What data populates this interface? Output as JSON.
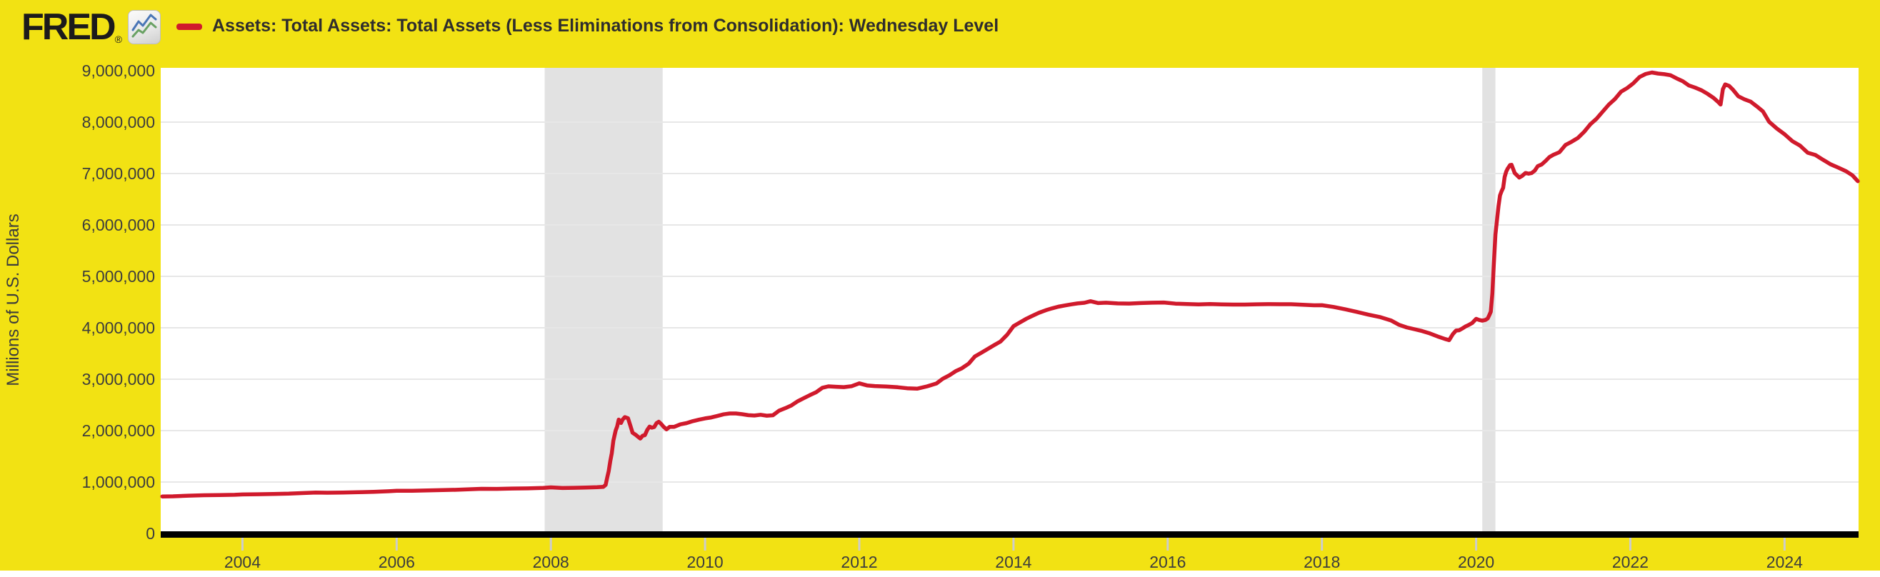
{
  "header": {
    "logo_text": "FRED",
    "logo_registered": "®",
    "legend_label": "Assets: Total Assets: Total Assets (Less Eliminations from Consolidation): Wednesday Level"
  },
  "colors": {
    "background": "#f2e213",
    "line": "#d01a2c",
    "recession_band": "#e2e2e2",
    "gridline": "#e7e7e7",
    "axis_line": "#000000",
    "tick_stub": "#cccccc",
    "tick_text": "#3d3d3d",
    "plot_background": "#ffffff"
  },
  "chart_data": {
    "type": "line",
    "title": "Assets: Total Assets: Total Assets (Less Eliminations from Consolidation): Wednesday Level",
    "xlabel": "",
    "ylabel": "Millions of U.S. Dollars",
    "xlim": [
      2002.94,
      2024.96
    ],
    "ylim": [
      0,
      9000000
    ],
    "grid": true,
    "legend_position": "top-left",
    "y_ticks": [
      {
        "value": 0,
        "label": "0"
      },
      {
        "value": 1000000,
        "label": "1,000,000"
      },
      {
        "value": 2000000,
        "label": "2,000,000"
      },
      {
        "value": 3000000,
        "label": "3,000,000"
      },
      {
        "value": 4000000,
        "label": "4,000,000"
      },
      {
        "value": 5000000,
        "label": "5,000,000"
      },
      {
        "value": 6000000,
        "label": "6,000,000"
      },
      {
        "value": 7000000,
        "label": "7,000,000"
      },
      {
        "value": 8000000,
        "label": "8,000,000"
      },
      {
        "value": 9000000,
        "label": "9,000,000"
      }
    ],
    "x_ticks": [
      {
        "value": 2004,
        "label": "2004"
      },
      {
        "value": 2006,
        "label": "2006"
      },
      {
        "value": 2008,
        "label": "2008"
      },
      {
        "value": 2010,
        "label": "2010"
      },
      {
        "value": 2012,
        "label": "2012"
      },
      {
        "value": 2014,
        "label": "2014"
      },
      {
        "value": 2016,
        "label": "2016"
      },
      {
        "value": 2018,
        "label": "2018"
      },
      {
        "value": 2020,
        "label": "2020"
      },
      {
        "value": 2022,
        "label": "2022"
      },
      {
        "value": 2024,
        "label": "2024"
      }
    ],
    "recession_bands": [
      {
        "start": 2007.92,
        "end": 2009.45
      },
      {
        "start": 2020.08,
        "end": 2020.25
      }
    ],
    "series": [
      {
        "name": "Assets: Total Assets: Total Assets (Less Eliminations from Consolidation): Wednesday Level",
        "color": "#d01a2c",
        "units": "Millions of U.S. Dollars",
        "points": [
          [
            2002.96,
            720000
          ],
          [
            2003.1,
            722000
          ],
          [
            2003.3,
            735000
          ],
          [
            2003.5,
            743000
          ],
          [
            2003.7,
            746000
          ],
          [
            2003.9,
            752000
          ],
          [
            2004.0,
            758000
          ],
          [
            2004.2,
            762000
          ],
          [
            2004.4,
            768000
          ],
          [
            2004.6,
            774000
          ],
          [
            2004.8,
            786000
          ],
          [
            2004.95,
            795000
          ],
          [
            2005.1,
            791000
          ],
          [
            2005.3,
            794000
          ],
          [
            2005.5,
            801000
          ],
          [
            2005.7,
            808000
          ],
          [
            2005.9,
            821000
          ],
          [
            2006.0,
            829000
          ],
          [
            2006.2,
            830000
          ],
          [
            2006.4,
            836000
          ],
          [
            2006.6,
            843000
          ],
          [
            2006.8,
            850000
          ],
          [
            2006.95,
            860000
          ],
          [
            2007.1,
            868000
          ],
          [
            2007.3,
            866000
          ],
          [
            2007.5,
            873000
          ],
          [
            2007.7,
            876000
          ],
          [
            2007.9,
            885000
          ],
          [
            2008.0,
            896000
          ],
          [
            2008.15,
            884000
          ],
          [
            2008.3,
            887000
          ],
          [
            2008.45,
            892000
          ],
          [
            2008.6,
            898000
          ],
          [
            2008.68,
            905000
          ],
          [
            2008.71,
            945000
          ],
          [
            2008.73,
            1080000
          ],
          [
            2008.75,
            1214000
          ],
          [
            2008.77,
            1399000
          ],
          [
            2008.79,
            1560000
          ],
          [
            2008.81,
            1804000
          ],
          [
            2008.84,
            2000000
          ],
          [
            2008.86,
            2079000
          ],
          [
            2008.88,
            2214000
          ],
          [
            2008.91,
            2148000
          ],
          [
            2008.93,
            2212000
          ],
          [
            2008.96,
            2262000
          ],
          [
            2009.0,
            2240000
          ],
          [
            2009.03,
            2101000
          ],
          [
            2009.06,
            1958000
          ],
          [
            2009.1,
            1918000
          ],
          [
            2009.13,
            1880000
          ],
          [
            2009.16,
            1846000
          ],
          [
            2009.19,
            1900000
          ],
          [
            2009.22,
            1913000
          ],
          [
            2009.25,
            2012000
          ],
          [
            2009.28,
            2078000
          ],
          [
            2009.31,
            2057000
          ],
          [
            2009.34,
            2069000
          ],
          [
            2009.37,
            2144000
          ],
          [
            2009.4,
            2172000
          ],
          [
            2009.43,
            2130000
          ],
          [
            2009.46,
            2078000
          ],
          [
            2009.5,
            2025000
          ],
          [
            2009.54,
            2072000
          ],
          [
            2009.6,
            2073000
          ],
          [
            2009.68,
            2122000
          ],
          [
            2009.76,
            2146000
          ],
          [
            2009.84,
            2183000
          ],
          [
            2009.92,
            2212000
          ],
          [
            2010.0,
            2237000
          ],
          [
            2010.08,
            2255000
          ],
          [
            2010.16,
            2286000
          ],
          [
            2010.24,
            2317000
          ],
          [
            2010.32,
            2334000
          ],
          [
            2010.4,
            2333000
          ],
          [
            2010.48,
            2319000
          ],
          [
            2010.56,
            2300000
          ],
          [
            2010.64,
            2293000
          ],
          [
            2010.72,
            2308000
          ],
          [
            2010.8,
            2290000
          ],
          [
            2010.88,
            2298000
          ],
          [
            2010.96,
            2388000
          ],
          [
            2011.04,
            2436000
          ],
          [
            2011.12,
            2490000
          ],
          [
            2011.2,
            2570000
          ],
          [
            2011.28,
            2630000
          ],
          [
            2011.36,
            2690000
          ],
          [
            2011.44,
            2747000
          ],
          [
            2011.52,
            2832000
          ],
          [
            2011.6,
            2861000
          ],
          [
            2011.7,
            2853000
          ],
          [
            2011.8,
            2846000
          ],
          [
            2011.9,
            2864000
          ],
          [
            2012.0,
            2919000
          ],
          [
            2012.1,
            2879000
          ],
          [
            2012.2,
            2866000
          ],
          [
            2012.35,
            2857000
          ],
          [
            2012.5,
            2843000
          ],
          [
            2012.62,
            2824000
          ],
          [
            2012.75,
            2815000
          ],
          [
            2012.88,
            2861000
          ],
          [
            2013.0,
            2917000
          ],
          [
            2013.08,
            3005000
          ],
          [
            2013.17,
            3078000
          ],
          [
            2013.25,
            3155000
          ],
          [
            2013.33,
            3213000
          ],
          [
            2013.42,
            3304000
          ],
          [
            2013.5,
            3443000
          ],
          [
            2013.58,
            3512000
          ],
          [
            2013.67,
            3591000
          ],
          [
            2013.75,
            3662000
          ],
          [
            2013.83,
            3731000
          ],
          [
            2013.92,
            3869000
          ],
          [
            2014.0,
            4030000
          ],
          [
            2014.08,
            4102000
          ],
          [
            2014.17,
            4178000
          ],
          [
            2014.25,
            4236000
          ],
          [
            2014.33,
            4291000
          ],
          [
            2014.42,
            4341000
          ],
          [
            2014.5,
            4378000
          ],
          [
            2014.58,
            4410000
          ],
          [
            2014.67,
            4435000
          ],
          [
            2014.75,
            4455000
          ],
          [
            2014.83,
            4474000
          ],
          [
            2014.92,
            4486000
          ],
          [
            2015.0,
            4516000
          ],
          [
            2015.1,
            4481000
          ],
          [
            2015.2,
            4487000
          ],
          [
            2015.35,
            4474000
          ],
          [
            2015.5,
            4471000
          ],
          [
            2015.65,
            4480000
          ],
          [
            2015.8,
            4487000
          ],
          [
            2015.95,
            4491000
          ],
          [
            2016.1,
            4470000
          ],
          [
            2016.25,
            4462000
          ],
          [
            2016.4,
            4455000
          ],
          [
            2016.55,
            4463000
          ],
          [
            2016.7,
            4456000
          ],
          [
            2016.85,
            4451000
          ],
          [
            2017.0,
            4451000
          ],
          [
            2017.15,
            4457000
          ],
          [
            2017.3,
            4460000
          ],
          [
            2017.45,
            4459000
          ],
          [
            2017.6,
            4459000
          ],
          [
            2017.75,
            4449000
          ],
          [
            2017.9,
            4437000
          ],
          [
            2018.0,
            4439000
          ],
          [
            2018.15,
            4406000
          ],
          [
            2018.3,
            4360000
          ],
          [
            2018.45,
            4310000
          ],
          [
            2018.6,
            4256000
          ],
          [
            2018.75,
            4210000
          ],
          [
            2018.9,
            4140000
          ],
          [
            2019.0,
            4058000
          ],
          [
            2019.1,
            4007000
          ],
          [
            2019.2,
            3972000
          ],
          [
            2019.3,
            3936000
          ],
          [
            2019.4,
            3890000
          ],
          [
            2019.5,
            3832000
          ],
          [
            2019.6,
            3781000
          ],
          [
            2019.65,
            3760000
          ],
          [
            2019.7,
            3880000
          ],
          [
            2019.74,
            3946000
          ],
          [
            2019.78,
            3952000
          ],
          [
            2019.82,
            3986000
          ],
          [
            2019.86,
            4023000
          ],
          [
            2019.9,
            4052000
          ],
          [
            2019.95,
            4095000
          ],
          [
            2020.0,
            4173000
          ],
          [
            2020.04,
            4151000
          ],
          [
            2020.08,
            4139000
          ],
          [
            2020.12,
            4152000
          ],
          [
            2020.15,
            4182000
          ],
          [
            2020.17,
            4241000
          ],
          [
            2020.19,
            4312000
          ],
          [
            2020.21,
            4668000
          ],
          [
            2020.23,
            5254000
          ],
          [
            2020.25,
            5812000
          ],
          [
            2020.27,
            6083000
          ],
          [
            2020.29,
            6367000
          ],
          [
            2020.31,
            6573000
          ],
          [
            2020.33,
            6656000
          ],
          [
            2020.35,
            6721000
          ],
          [
            2020.37,
            6934000
          ],
          [
            2020.39,
            7037000
          ],
          [
            2020.41,
            7097000
          ],
          [
            2020.44,
            7165000
          ],
          [
            2020.46,
            7169000
          ],
          [
            2020.5,
            7009000
          ],
          [
            2020.53,
            6965000
          ],
          [
            2020.56,
            6921000
          ],
          [
            2020.6,
            6957000
          ],
          [
            2020.64,
            7011000
          ],
          [
            2020.68,
            6997000
          ],
          [
            2020.72,
            7010000
          ],
          [
            2020.76,
            7056000
          ],
          [
            2020.8,
            7145000
          ],
          [
            2020.85,
            7177000
          ],
          [
            2020.9,
            7243000
          ],
          [
            2020.95,
            7320000
          ],
          [
            2021.0,
            7363000
          ],
          [
            2021.08,
            7415000
          ],
          [
            2021.16,
            7557000
          ],
          [
            2021.24,
            7619000
          ],
          [
            2021.32,
            7693000
          ],
          [
            2021.4,
            7810000
          ],
          [
            2021.48,
            7955000
          ],
          [
            2021.56,
            8064000
          ],
          [
            2021.64,
            8202000
          ],
          [
            2021.72,
            8340000
          ],
          [
            2021.8,
            8448000
          ],
          [
            2021.88,
            8591000
          ],
          [
            2021.96,
            8664000
          ],
          [
            2022.04,
            8757000
          ],
          [
            2022.12,
            8878000
          ],
          [
            2022.2,
            8937000
          ],
          [
            2022.28,
            8965000
          ],
          [
            2022.36,
            8945000
          ],
          [
            2022.44,
            8932000
          ],
          [
            2022.52,
            8913000
          ],
          [
            2022.6,
            8851000
          ],
          [
            2022.68,
            8796000
          ],
          [
            2022.76,
            8712000
          ],
          [
            2022.84,
            8671000
          ],
          [
            2022.92,
            8621000
          ],
          [
            2023.0,
            8551000
          ],
          [
            2023.08,
            8470000
          ],
          [
            2023.14,
            8390000
          ],
          [
            2023.17,
            8342000
          ],
          [
            2023.2,
            8639000
          ],
          [
            2023.23,
            8734000
          ],
          [
            2023.28,
            8706000
          ],
          [
            2023.33,
            8632000
          ],
          [
            2023.4,
            8503000
          ],
          [
            2023.48,
            8443000
          ],
          [
            2023.56,
            8398000
          ],
          [
            2023.64,
            8307000
          ],
          [
            2023.72,
            8208000
          ],
          [
            2023.8,
            8005000
          ],
          [
            2023.9,
            7875000
          ],
          [
            2024.0,
            7764000
          ],
          [
            2024.1,
            7630000
          ],
          [
            2024.2,
            7543000
          ],
          [
            2024.3,
            7404000
          ],
          [
            2024.4,
            7361000
          ],
          [
            2024.5,
            7266000
          ],
          [
            2024.6,
            7178000
          ],
          [
            2024.7,
            7112000
          ],
          [
            2024.8,
            7043000
          ],
          [
            2024.88,
            6965000
          ],
          [
            2024.95,
            6852000
          ]
        ]
      }
    ]
  }
}
